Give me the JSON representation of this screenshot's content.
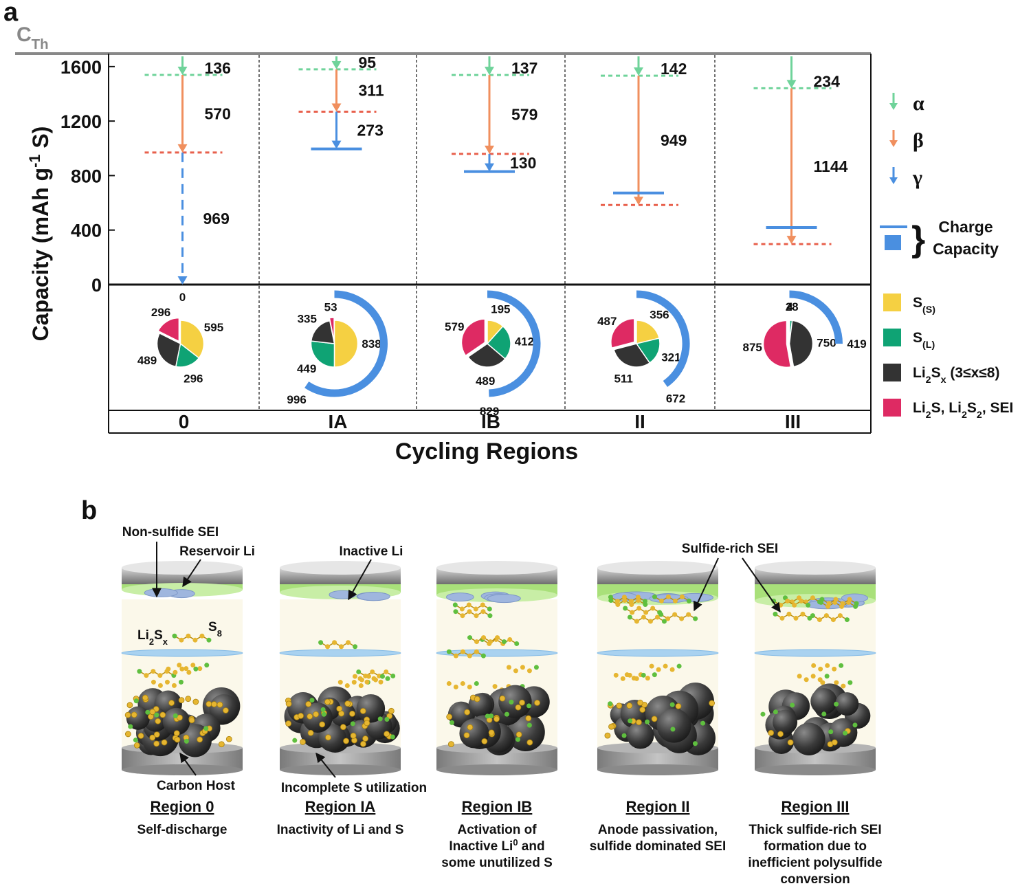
{
  "chart_data": {
    "type": "cascade",
    "panel_label": "a",
    "theoretical_label": [
      "C",
      {
        "sub": "Th"
      }
    ],
    "ylabel": [
      "Capacity (mAh g",
      {
        "sup": "-1"
      },
      " S)"
    ],
    "xlabel": "Cycling Regions",
    "ylim": [
      0,
      1675
    ],
    "yticks": [
      0,
      400,
      800,
      1200,
      1600
    ],
    "categories": [
      "0",
      "IA",
      "IB",
      "II",
      "III"
    ],
    "series": [
      {
        "name": "α",
        "color": "#6fd39a",
        "values": [
          136,
          95,
          137,
          142,
          234
        ]
      },
      {
        "name": "β",
        "color": "#f08f5e",
        "values": [
          570,
          311,
          579,
          949,
          1144
        ]
      },
      {
        "name": "γ",
        "color": "#4a8fe0",
        "values": [
          969,
          273,
          130,
          null,
          null
        ]
      }
    ],
    "charge": {
      "name": [
        "Charge",
        "Capacity"
      ],
      "color": "#4a8fe0",
      "values": [
        0,
        996,
        829,
        672,
        419
      ]
    },
    "composition": [
      {
        "name": [
          "S",
          {
            "sub": "(S)"
          }
        ],
        "color": "#f5d042",
        "values": [
          595,
          838,
          195,
          356,
          4
        ]
      },
      {
        "name": [
          "S",
          {
            "sub": "(L)"
          }
        ],
        "color": "#0fa374",
        "values": [
          296,
          449,
          412,
          321,
          28
        ]
      },
      {
        "name": [
          "Li",
          {
            "sub": "2"
          },
          "S",
          {
            "sub": "x"
          },
          " (3≤x≤8)"
        ],
        "color": "#333333",
        "values": [
          489,
          335,
          489,
          511,
          750
        ]
      },
      {
        "name": [
          "Li",
          {
            "sub": "2"
          },
          "S, Li",
          {
            "sub": "2"
          },
          "S",
          {
            "sub": "2"
          },
          ", SEI"
        ],
        "color": "#de2a63",
        "values": [
          296,
          53,
          579,
          487,
          875
        ]
      }
    ]
  },
  "diagram": {
    "panel_label": "b",
    "annotations": [
      "Non-sulfide SEI",
      "Reservoir Li",
      "Inactive Li",
      "Sulfide-rich SEI",
      "Carbon Host",
      "Incomplete S utilization"
    ],
    "species": [
      [
        "Li",
        {
          "sub": "2"
        },
        "S",
        {
          "sub": "x"
        }
      ],
      [
        "S",
        {
          "sub": "8"
        }
      ]
    ],
    "regions": [
      {
        "title": "Region 0",
        "description": [
          "Self-discharge"
        ]
      },
      {
        "title": "Region IA",
        "description": [
          "Inactivity of Li and S"
        ]
      },
      {
        "title": "Region IB",
        "description": [
          "Activation of",
          [
            "Inactive Li",
            {
              "sup": "0"
            },
            " and"
          ],
          "some unutilized S"
        ]
      },
      {
        "title": "Region II",
        "description": [
          "Anode passivation,",
          "sulfide dominated SEI"
        ]
      },
      {
        "title": "Region III",
        "description": [
          "Thick sulfide-rich SEI",
          "formation due to",
          "inefficient polysulfide",
          "conversion"
        ]
      }
    ]
  }
}
